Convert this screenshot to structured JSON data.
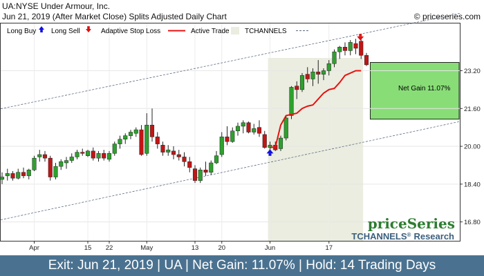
{
  "header": {
    "line1": "UA:NYSE Under Armour, Inc.",
    "line2": "Jun 21, 2019 (After Market Close)  Splits Adjusted Daily Chart",
    "copyright": "© priceseries.com"
  },
  "legend": {
    "long_buy": "Long Buy",
    "long_sell": "Long Sell",
    "adaptive_stop": "Adaptive Stop Loss",
    "active_trade": "Active Trade",
    "tchannels": "TCHANNELS"
  },
  "annotation": {
    "net_gain": "Net Gain 11.07%"
  },
  "branding": {
    "logo": "priceSeries",
    "tchannels": "TCHANNELS",
    "reg": "®",
    "research": "Research"
  },
  "footer": {
    "text": "Exit: Jun 21, 2019 | UA | Net Gain: 11.07% | Hold: 14 Trading Days"
  },
  "colors": {
    "up": "#2ea02e",
    "down": "#c01616",
    "stop": "#e81010",
    "buy_arrow": "#1010e0",
    "sell_arrow": "#e01010",
    "active_bg": "#eaeddf",
    "gain_box": "#88dd77",
    "footer_bg": "#4a7290"
  },
  "chart_data": {
    "type": "candlestick",
    "y_ticks": [
      "16.80",
      "18.40",
      "20.00",
      "21.60",
      "23.20"
    ],
    "ylim": [
      16.0,
      25.2
    ],
    "x_ticks": [
      {
        "label": "Apr",
        "index": 6
      },
      {
        "label": "15",
        "index": 16
      },
      {
        "label": "22",
        "index": 20
      },
      {
        "label": "May",
        "index": 27
      },
      {
        "label": "13",
        "index": 36
      },
      {
        "label": "20",
        "index": 41
      },
      {
        "label": "Jun",
        "index": 50
      },
      {
        "label": "17",
        "index": 61
      }
    ],
    "candles": [
      [
        18.6,
        18.9,
        18.4,
        18.7
      ],
      [
        18.75,
        19.05,
        18.55,
        18.85
      ],
      [
        18.85,
        18.95,
        18.55,
        18.65
      ],
      [
        18.65,
        19.05,
        18.6,
        18.9
      ],
      [
        18.9,
        19.1,
        18.65,
        18.75
      ],
      [
        18.75,
        19.05,
        18.6,
        19.0
      ],
      [
        19.0,
        19.6,
        18.95,
        19.5
      ],
      [
        19.55,
        19.85,
        19.35,
        19.65
      ],
      [
        19.65,
        19.8,
        19.35,
        19.5
      ],
      [
        19.5,
        19.6,
        18.55,
        18.7
      ],
      [
        18.7,
        19.3,
        18.6,
        19.15
      ],
      [
        19.15,
        19.45,
        19.0,
        19.35
      ],
      [
        19.3,
        19.55,
        19.05,
        19.4
      ],
      [
        19.4,
        19.7,
        19.3,
        19.55
      ],
      [
        19.55,
        19.85,
        19.45,
        19.75
      ],
      [
        19.75,
        19.9,
        19.6,
        19.7
      ],
      [
        19.6,
        19.85,
        19.55,
        19.8
      ],
      [
        19.8,
        19.95,
        19.4,
        19.5
      ],
      [
        19.5,
        19.8,
        19.35,
        19.7
      ],
      [
        19.7,
        19.85,
        19.4,
        19.5
      ],
      [
        19.45,
        19.8,
        19.35,
        19.7
      ],
      [
        19.7,
        20.2,
        19.6,
        20.1
      ],
      [
        20.1,
        20.45,
        19.9,
        20.3
      ],
      [
        20.3,
        20.55,
        20.1,
        20.45
      ],
      [
        20.45,
        20.7,
        20.3,
        20.6
      ],
      [
        20.55,
        20.8,
        20.4,
        20.7
      ],
      [
        20.7,
        20.9,
        19.6,
        19.65
      ],
      [
        19.7,
        21.4,
        19.6,
        20.9
      ],
      [
        20.9,
        21.6,
        20.2,
        20.4
      ],
      [
        20.4,
        20.6,
        19.9,
        20.1
      ],
      [
        20.05,
        20.2,
        19.6,
        19.75
      ],
      [
        19.75,
        20.05,
        19.6,
        19.85
      ],
      [
        19.8,
        20.0,
        19.45,
        19.65
      ],
      [
        19.65,
        19.85,
        19.4,
        19.55
      ],
      [
        19.55,
        19.75,
        19.15,
        19.35
      ],
      [
        19.35,
        19.55,
        18.9,
        19.1
      ],
      [
        19.05,
        19.2,
        18.45,
        18.55
      ],
      [
        18.55,
        19.1,
        18.45,
        19.0
      ],
      [
        19.0,
        19.35,
        18.75,
        18.9
      ],
      [
        18.9,
        19.4,
        18.8,
        19.3
      ],
      [
        19.3,
        19.8,
        19.25,
        19.6
      ],
      [
        19.65,
        20.6,
        19.55,
        20.4
      ],
      [
        20.4,
        20.85,
        20.05,
        20.2
      ],
      [
        20.2,
        20.8,
        20.15,
        20.65
      ],
      [
        20.65,
        21.0,
        20.45,
        20.85
      ],
      [
        20.85,
        21.1,
        20.55,
        21.0
      ],
      [
        21.0,
        21.05,
        20.55,
        20.6
      ],
      [
        20.6,
        20.95,
        20.5,
        20.75
      ],
      [
        20.8,
        21.1,
        20.4,
        20.55
      ],
      [
        20.5,
        20.65,
        19.9,
        19.95
      ],
      [
        19.95,
        20.2,
        19.75,
        20.05
      ],
      [
        20.05,
        20.2,
        19.8,
        19.85
      ],
      [
        19.9,
        20.45,
        19.8,
        20.35
      ],
      [
        20.35,
        21.3,
        20.25,
        21.2
      ],
      [
        21.3,
        22.55,
        21.15,
        22.5
      ],
      [
        22.55,
        22.75,
        22.0,
        22.4
      ],
      [
        22.4,
        23.1,
        22.3,
        23.0
      ],
      [
        23.05,
        23.35,
        22.7,
        22.85
      ],
      [
        22.85,
        23.3,
        22.55,
        23.15
      ],
      [
        23.15,
        23.65,
        22.65,
        23.05
      ],
      [
        23.05,
        23.3,
        22.8,
        23.2
      ],
      [
        23.2,
        23.65,
        23.0,
        23.5
      ],
      [
        23.5,
        24.1,
        23.35,
        24.0
      ],
      [
        24.0,
        24.25,
        23.7,
        24.2
      ],
      [
        24.2,
        24.4,
        23.85,
        24.05
      ],
      [
        24.05,
        24.5,
        23.85,
        24.4
      ],
      [
        24.35,
        24.55,
        23.9,
        24.15
      ],
      [
        24.45,
        24.55,
        23.7,
        23.85
      ],
      [
        23.85,
        23.95,
        23.4,
        23.45
      ]
    ],
    "channel_upper": [
      [
        0,
        21.6
      ],
      [
        70,
        24.9
      ]
    ],
    "channel_lower": [
      [
        0,
        16.9
      ],
      [
        70,
        20.3
      ]
    ],
    "stop_loss": [
      [
        50,
        19.95
      ],
      [
        51,
        19.97
      ],
      [
        52,
        20.9
      ],
      [
        53,
        21.3
      ],
      [
        54,
        21.35
      ],
      [
        55,
        21.4
      ],
      [
        56,
        21.6
      ],
      [
        57,
        21.7
      ],
      [
        58,
        21.75
      ],
      [
        59,
        22.0
      ],
      [
        60,
        22.25
      ],
      [
        61,
        22.4
      ],
      [
        62,
        22.45
      ],
      [
        63,
        22.7
      ],
      [
        64,
        23.0
      ],
      [
        65,
        23.1
      ],
      [
        66,
        23.2
      ],
      [
        67,
        23.2
      ]
    ],
    "buy_signal": {
      "index": 50,
      "price": 19.7
    },
    "sell_signal": {
      "index": 67,
      "price": 24.55
    },
    "active_trade": {
      "from": 50,
      "to": 67
    },
    "gain_box": {
      "from": 21.15,
      "to": 23.55
    }
  }
}
